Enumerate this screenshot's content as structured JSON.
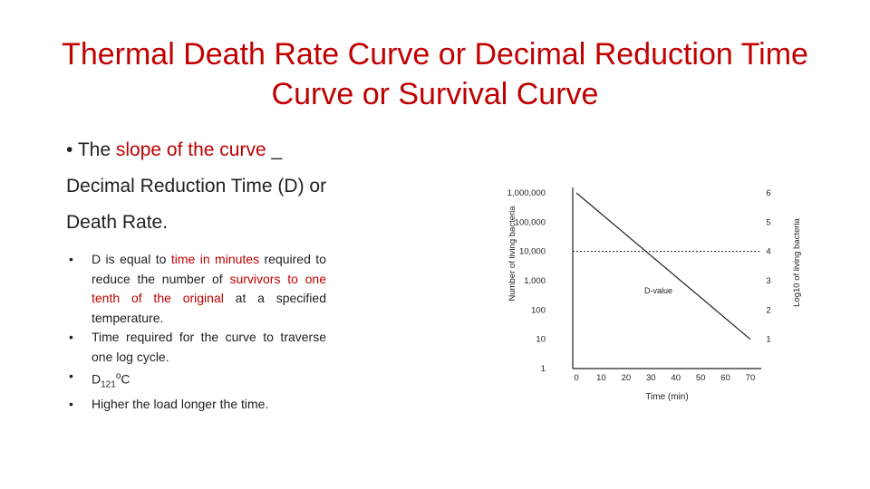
{
  "slide": {
    "title_line1": "Thermal Death Rate Curve or Decimal Reduction Time",
    "title_line2": "Curve or Survival Curve",
    "main_bullet": {
      "glyph": "•",
      "prefix": "The ",
      "highlight": "slope of the curve",
      "suffix": " _",
      "line2": "Decimal Reduction Time (D) or",
      "line3": "Death Rate."
    },
    "sub_bullets": {
      "b1": {
        "glyph": "•",
        "t1": "D is equal to ",
        "h1": "time in minutes",
        "t2": " required to reduce the number of ",
        "h2": "survivors to one tenth of the original",
        "t3": " at a specified temperature."
      },
      "b2": {
        "glyph": "•",
        "text": "Time required for the curve to traverse one log cycle."
      },
      "b3": {
        "glyph": "•",
        "main": "D",
        "sub": "121",
        "sup": "o",
        "unit": "C"
      },
      "b4": {
        "glyph": "•",
        "text": "Higher the load longer the time."
      }
    }
  },
  "chart_data": {
    "type": "line",
    "title": "",
    "xlabel": "Time (min)",
    "ylabel_left": "Number of living bacteria",
    "ylabel_right": "Log10 of living bacteria",
    "x_ticks": [
      "0",
      "10",
      "20",
      "30",
      "40",
      "50",
      "60",
      "70"
    ],
    "xlim": [
      0,
      70
    ],
    "y_left_ticks": [
      "1,000,000",
      "100,000",
      "10,000",
      "1,000",
      "100",
      "10",
      "1"
    ],
    "y_right_ticks": [
      "6",
      "5",
      "4",
      "3",
      "2",
      "1"
    ],
    "ylim_log10": [
      0,
      6
    ],
    "series": [
      {
        "x": [
          0,
          70
        ],
        "log10_y": [
          6,
          1
        ]
      }
    ],
    "reference_line_log10": 4,
    "annotation": "D-value",
    "annotation_at": {
      "x": 33,
      "log10_y": 3
    },
    "grid": false
  }
}
